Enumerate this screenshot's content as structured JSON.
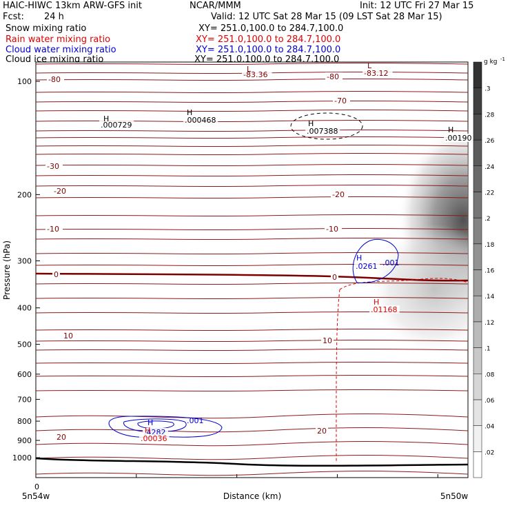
{
  "header": {
    "model": "HAIC-HIWC 13km ARW-GFS init",
    "center": "NCAR/MMM",
    "init": "Init: 12 UTC Fri 27 Mar 15",
    "fcst_label": "Fcst:",
    "fcst_value": "24 h",
    "valid": "Valid: 12 UTC Sat 28 Mar 15 (09 LST Sat 28 Mar 15)",
    "fields": [
      {
        "name": "Snow mixing ratio",
        "xy": "XY= 251.0,100.0 to 284.7,100.0",
        "color": "#000000"
      },
      {
        "name": "Rain water mixing ratio",
        "xy": "XY= 251.0,100.0 to 284.7,100.0",
        "color": "#e00000"
      },
      {
        "name": "Cloud water mixing ratio",
        "xy": "XY= 251.0,100.0 to 284.7,100.0",
        "color": "#0000d0"
      },
      {
        "name": "Cloud ice mixing ratio",
        "xy": "XY= 251.0,100.0 to 284.7,100.0",
        "color": "#000000"
      }
    ]
  },
  "chart_data": {
    "type": "contour-cross-section",
    "ylabel": "Pressure (hPa)",
    "xlabel": "Distance (km)",
    "y_axis": "log",
    "y_ticks": [
      100,
      200,
      300,
      400,
      500,
      600,
      700,
      800,
      900,
      1000
    ],
    "x_ticks": [
      0
    ],
    "x_start_label": "5n54w",
    "x_end_label": "5n50w",
    "colorbar": {
      "unit": "g kg",
      "unit_exp": "-1",
      "ticks": [
        ".02",
        ".04",
        ".06",
        ".08",
        ".1",
        ".12",
        ".14",
        ".16",
        ".18",
        ".2",
        ".22",
        ".24",
        ".26",
        ".28",
        ".3"
      ]
    },
    "temperature_labels": [
      "-80",
      "-80",
      "-70",
      "-30",
      "-20",
      "-20",
      "-10",
      "-10",
      "0",
      "0",
      "10",
      "10",
      "20",
      "20"
    ],
    "extrema": [
      {
        "kind": "L",
        "value": "-83.36",
        "color": "#800000"
      },
      {
        "kind": "L",
        "value": "-83.12",
        "color": "#800000"
      },
      {
        "kind": "H",
        "value": ".000729",
        "color": "#000000"
      },
      {
        "kind": "H",
        "value": ".000468",
        "color": "#000000"
      },
      {
        "kind": "H",
        "value": ".007388",
        "color": "#000000"
      },
      {
        "kind": "H",
        "value": ".00190",
        "color": "#000000"
      },
      {
        "kind": "H",
        "value": ".0261",
        "color": "#0000d0"
      },
      {
        "kind": "H",
        "value": ".01168",
        "color": "#e00000"
      },
      {
        "kind": "H",
        "value": ".4282",
        "color": "#0000d0"
      },
      {
        "kind": "H",
        "value": ".00036",
        "color": "#e00000"
      }
    ],
    "contour_labels": [
      {
        "text": ".001",
        "color": "#0000d0"
      },
      {
        "text": ".001",
        "color": "#0000d0"
      }
    ]
  }
}
